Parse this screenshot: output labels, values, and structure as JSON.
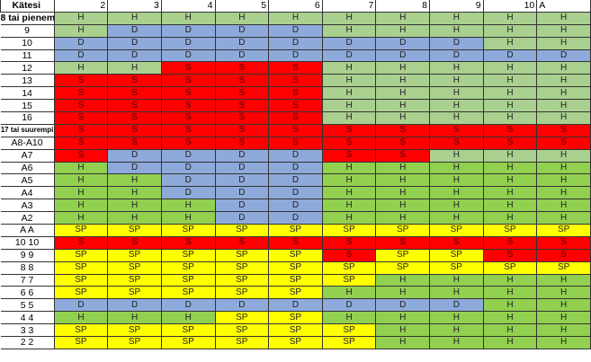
{
  "header": {
    "label": "Kätesi",
    "dealer_cards": [
      "2",
      "3",
      "4",
      "5",
      "6",
      "7",
      "8",
      "9",
      "10",
      "A"
    ]
  },
  "colors": {
    "H_light": "#a9d08e",
    "H_bright": "#92d050",
    "D": "#8eaadb",
    "S": "#ff0000",
    "SP": "#ffff00"
  },
  "rows": [
    {
      "label": "8 tai pienempi",
      "shade": "light",
      "cells": [
        "H",
        "H",
        "H",
        "H",
        "H",
        "H",
        "H",
        "H",
        "H",
        "H"
      ]
    },
    {
      "label": "9",
      "shade": "light",
      "cells": [
        "H",
        "D",
        "D",
        "D",
        "D",
        "H",
        "H",
        "H",
        "H",
        "H"
      ]
    },
    {
      "label": "10",
      "shade": "light",
      "cells": [
        "D",
        "D",
        "D",
        "D",
        "D",
        "D",
        "D",
        "D",
        "H",
        "H"
      ]
    },
    {
      "label": "11",
      "shade": "light",
      "cells": [
        "D",
        "D",
        "D",
        "D",
        "D",
        "D",
        "D",
        "D",
        "D",
        "D"
      ]
    },
    {
      "label": "12",
      "shade": "light",
      "cells": [
        "H",
        "H",
        "S",
        "S",
        "S",
        "H",
        "H",
        "H",
        "H",
        "H"
      ]
    },
    {
      "label": "13",
      "shade": "light",
      "cells": [
        "S",
        "S",
        "S",
        "S",
        "S",
        "H",
        "H",
        "H",
        "H",
        "H"
      ]
    },
    {
      "label": "14",
      "shade": "light",
      "cells": [
        "S",
        "S",
        "S",
        "S",
        "S",
        "H",
        "H",
        "H",
        "H",
        "H"
      ]
    },
    {
      "label": "15",
      "shade": "light",
      "cells": [
        "S",
        "S",
        "S",
        "S",
        "S",
        "H",
        "H",
        "H",
        "H",
        "H"
      ]
    },
    {
      "label": "16",
      "shade": "light",
      "cells": [
        "S",
        "S",
        "S",
        "S",
        "S",
        "H",
        "H",
        "H",
        "H",
        "H"
      ]
    },
    {
      "label": "17 tai suurempi",
      "shade": "light",
      "cells": [
        "S",
        "S",
        "S",
        "S",
        "S",
        "S",
        "S",
        "S",
        "S",
        "S"
      ]
    },
    {
      "label": "A8-A10",
      "shade": "light",
      "cells": [
        "S",
        "S",
        "S",
        "S",
        "S",
        "S",
        "S",
        "S",
        "S",
        "S"
      ]
    },
    {
      "label": "A7",
      "shade": "light",
      "cells": [
        "S",
        "D",
        "D",
        "D",
        "D",
        "S",
        "S",
        "H",
        "H",
        "H"
      ]
    },
    {
      "label": "A6",
      "shade": "bright",
      "cells": [
        "H",
        "D",
        "D",
        "D",
        "D",
        "H",
        "H",
        "H",
        "H",
        "H"
      ]
    },
    {
      "label": "A5",
      "shade": "bright",
      "cells": [
        "H",
        "H",
        "D",
        "D",
        "D",
        "H",
        "H",
        "H",
        "H",
        "H"
      ]
    },
    {
      "label": "A4",
      "shade": "bright",
      "cells": [
        "H",
        "H",
        "D",
        "D",
        "D",
        "H",
        "H",
        "H",
        "H",
        "H"
      ]
    },
    {
      "label": "A3",
      "shade": "bright",
      "cells": [
        "H",
        "H",
        "H",
        "D",
        "D",
        "H",
        "H",
        "H",
        "H",
        "H"
      ]
    },
    {
      "label": "A2",
      "shade": "bright",
      "cells": [
        "H",
        "H",
        "H",
        "D",
        "D",
        "H",
        "H",
        "H",
        "H",
        "H"
      ]
    },
    {
      "label": "A A",
      "shade": "bright",
      "cells": [
        "SP",
        "SP",
        "SP",
        "SP",
        "SP",
        "SP",
        "SP",
        "SP",
        "SP",
        "SP"
      ]
    },
    {
      "label": "10 10",
      "shade": "bright",
      "cells": [
        "S",
        "S",
        "S",
        "S",
        "S",
        "S",
        "S",
        "S",
        "S",
        "S"
      ]
    },
    {
      "label": "9 9",
      "shade": "bright",
      "cells": [
        "SP",
        "SP",
        "SP",
        "SP",
        "SP",
        "S",
        "SP",
        "SP",
        "S",
        "S"
      ]
    },
    {
      "label": "8 8",
      "shade": "bright",
      "cells": [
        "SP",
        "SP",
        "SP",
        "SP",
        "SP",
        "SP",
        "SP",
        "SP",
        "SP",
        "SP"
      ]
    },
    {
      "label": "7 7",
      "shade": "bright",
      "cells": [
        "SP",
        "SP",
        "SP",
        "SP",
        "SP",
        "SP",
        "H",
        "H",
        "H",
        "H"
      ]
    },
    {
      "label": "6 6",
      "shade": "bright",
      "cells": [
        "SP",
        "SP",
        "SP",
        "SP",
        "SP",
        "H",
        "H",
        "H",
        "H",
        "H"
      ]
    },
    {
      "label": "5 5",
      "shade": "bright",
      "cells": [
        "D",
        "D",
        "D",
        "D",
        "D",
        "D",
        "D",
        "D",
        "H",
        "H"
      ]
    },
    {
      "label": "4 4",
      "shade": "bright",
      "cells": [
        "H",
        "H",
        "H",
        "SP",
        "SP",
        "H",
        "H",
        "H",
        "H",
        "H"
      ]
    },
    {
      "label": "3 3",
      "shade": "bright",
      "cells": [
        "SP",
        "SP",
        "SP",
        "SP",
        "SP",
        "SP",
        "H",
        "H",
        "H",
        "H"
      ]
    },
    {
      "label": "2 2",
      "shade": "bright",
      "cells": [
        "SP",
        "SP",
        "SP",
        "SP",
        "SP",
        "SP",
        "H",
        "H",
        "H",
        "H"
      ]
    }
  ]
}
